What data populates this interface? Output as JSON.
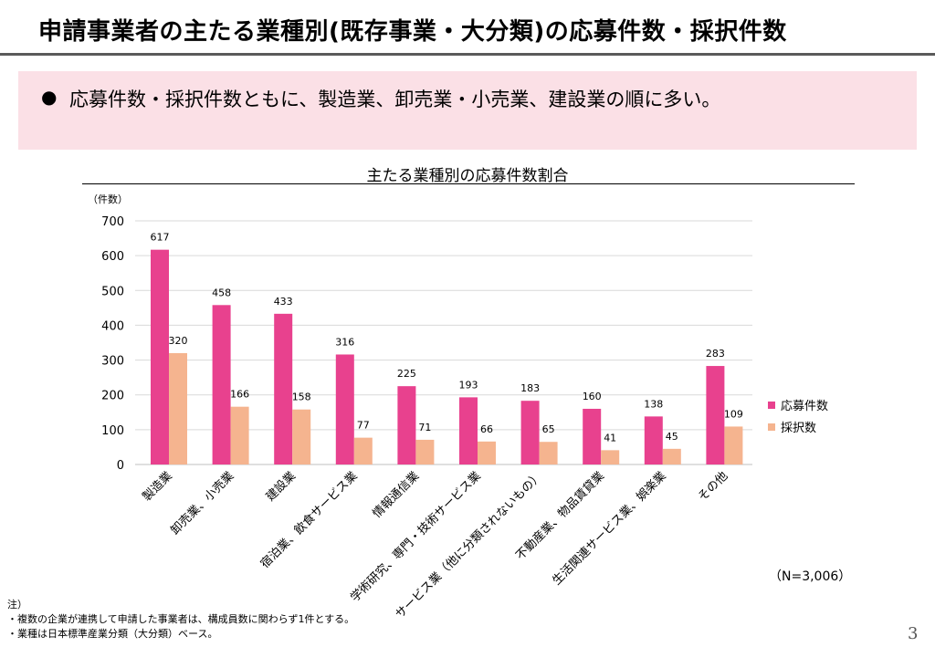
{
  "page": {
    "title": "申請事業者の主たる業種別(既存事業・大分類)の応募件数・採択件数",
    "summary_bullet": "●",
    "summary": "応募件数・採択件数ともに、製造業、卸売業・小売業、建設業の順に多い。",
    "page_number": "3"
  },
  "chart_data": {
    "type": "bar",
    "title": "主たる業種別の応募件数割合",
    "ylabel": "（件数）",
    "ylim": [
      0,
      700
    ],
    "yticks": [
      0,
      100,
      200,
      300,
      400,
      500,
      600,
      700
    ],
    "grid": true,
    "legend_position": "right",
    "categories": [
      "製造業",
      "卸売業、小売業",
      "建設業",
      "宿泊業、飲食サービス業",
      "情報通信業",
      "学術研究、専門・技術サービス業",
      "サービス業（他に分類されないもの）",
      "不動産業、物品賃貸業",
      "生活関連サービス業、娯楽業",
      "その他"
    ],
    "series": [
      {
        "name": "応募件数",
        "color": "#e8418e",
        "values": [
          617,
          458,
          433,
          316,
          225,
          193,
          183,
          160,
          138,
          283
        ]
      },
      {
        "name": "採択数",
        "color": "#f5b48f",
        "values": [
          320,
          166,
          158,
          77,
          71,
          66,
          65,
          41,
          45,
          109
        ]
      }
    ],
    "sample_note": "（N=3,006）"
  },
  "notes": {
    "heading": "注）",
    "items": [
      "・複数の企業が連携して申請した事業者は、構成員数に関わらず1件とする。",
      "・業種は日本標準産業分類（大分類）ベース。"
    ]
  }
}
